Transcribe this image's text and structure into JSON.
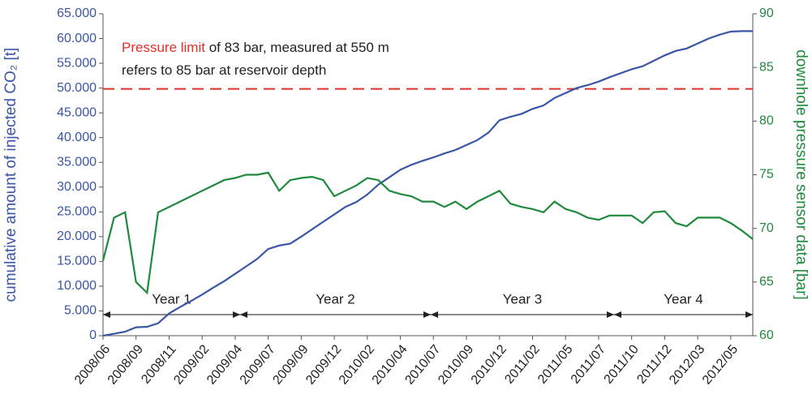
{
  "chart_data": {
    "type": "line",
    "categories": [
      "2008/06",
      null,
      null,
      "2008/09",
      null,
      null,
      "2008/11",
      null,
      null,
      "2009/02",
      null,
      null,
      "2009/04",
      null,
      null,
      "2009/07",
      null,
      null,
      "2009/09",
      null,
      null,
      "2009/12",
      null,
      null,
      "2010/02",
      null,
      null,
      "2010/04",
      null,
      null,
      "2010/07",
      null,
      null,
      "2010/09",
      null,
      null,
      "2010/12",
      null,
      null,
      "2011/02",
      null,
      null,
      "2011/05",
      null,
      null,
      "2011/07",
      null,
      null,
      "2011/10",
      null,
      null,
      "2011/12",
      null,
      null,
      "2012/03",
      null,
      null,
      "2012/05",
      null,
      null
    ],
    "ylabel": "cumulative amount of injected CO₂ [t]",
    "y2label": "downhole pressure sensor data [bar]",
    "ylim": [
      0,
      65000
    ],
    "yticks": [
      0,
      {
        "value": 5000,
        "label": "5.000"
      },
      {
        "value": 10000,
        "label": "10.000"
      },
      {
        "value": 15000,
        "label": "15.000"
      },
      {
        "value": 20000,
        "label": "20.000"
      },
      {
        "value": 25000,
        "label": "25.000"
      },
      {
        "value": 30000,
        "label": "30.000"
      },
      {
        "value": 35000,
        "label": "35.000"
      },
      {
        "value": 40000,
        "label": "40.000"
      },
      {
        "value": 45000,
        "label": "45.000"
      },
      {
        "value": 50000,
        "label": "50.000"
      },
      {
        "value": 55000,
        "label": "55.000"
      },
      {
        "value": 60000,
        "label": "60.000"
      },
      {
        "value": 65000,
        "label": "65.000"
      }
    ],
    "y2lim": [
      60,
      90
    ],
    "y2ticks": [
      60,
      65,
      70,
      75,
      80,
      85,
      90
    ],
    "ycolor": "#3a56a6",
    "y2color": "#1f8a3c",
    "series": [
      {
        "color": "#3a56a6",
        "values": [
          0,
          400,
          800,
          1700,
          1800,
          2500,
          4500,
          5800,
          7000,
          8300,
          9700,
          11000,
          12500,
          14000,
          15500,
          17500,
          18200,
          18600,
          20000,
          21500,
          23000,
          24500,
          26000,
          27000,
          28500,
          30500,
          32000,
          33500,
          34500,
          35300,
          36000,
          36800,
          37500,
          38500,
          39500,
          41000,
          43500,
          44200,
          44800,
          45800,
          46500,
          48000,
          49000,
          50000,
          50600,
          51300,
          52200,
          53000,
          53800,
          54400,
          55500,
          56600,
          57500,
          58000,
          59000,
          60000,
          60800,
          61400,
          61500,
          61500
        ]
      },
      {
        "color": "#1f8a3c",
        "axis": "y2",
        "values": [
          67,
          71,
          71.5,
          65,
          64,
          71.5,
          72,
          72.5,
          73,
          73.5,
          74,
          74.5,
          74.7,
          75,
          75,
          75.2,
          73.5,
          74.5,
          74.7,
          74.8,
          74.5,
          73,
          73.5,
          74,
          74.7,
          74.5,
          73.5,
          73.2,
          73,
          72.5,
          72.5,
          72,
          72.5,
          71.8,
          72.5,
          73,
          73.5,
          72.3,
          72,
          71.8,
          71.5,
          72.5,
          71.8,
          71.5,
          71,
          70.8,
          71.2,
          71.2,
          71.2,
          70.5,
          71.5,
          71.6,
          70.5,
          70.2,
          71,
          71,
          71,
          70.5,
          69.8,
          69
        ]
      }
    ],
    "reference_line": {
      "value": 83,
      "axis": "y2",
      "color": "#e0302b",
      "dashed": true
    },
    "annotation": [
      [
        {
          "text": "Pressure limit",
          "color": "#e0302b"
        },
        {
          "text": " of 83 bar, measured at 550 m"
        }
      ],
      [
        {
          "text": "refers to 85 bar at reservoir depth"
        }
      ]
    ],
    "periods": [
      "Year 1",
      "Year 2",
      "Year 3",
      "Year 4"
    ]
  }
}
